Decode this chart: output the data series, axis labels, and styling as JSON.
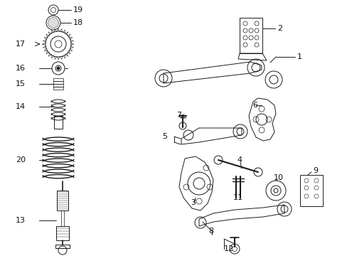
{
  "bg_color": "#ffffff",
  "fig_width": 4.89,
  "fig_height": 3.6,
  "dpi": 100
}
